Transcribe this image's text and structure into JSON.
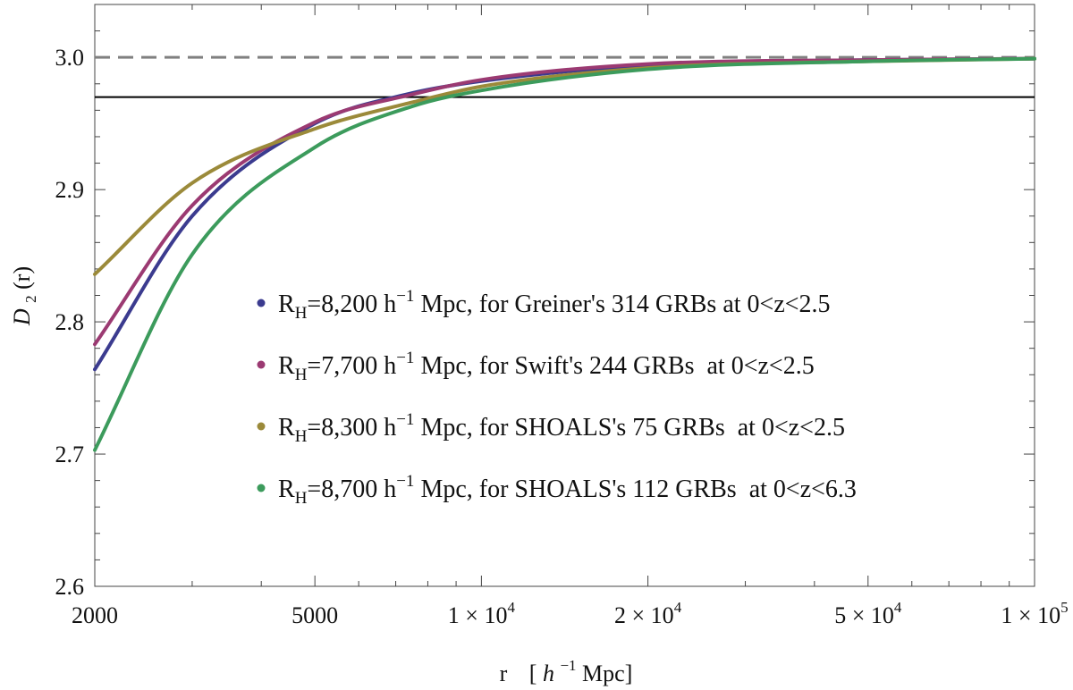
{
  "chart_data": {
    "type": "line",
    "x_scale": "log",
    "xlim": [
      2000,
      100000
    ],
    "ylim": [
      2.6,
      3.04
    ],
    "grid": false,
    "legend_position": "center-right",
    "xlabel": {
      "main": "r",
      "open": "[",
      "h": "h",
      "exp": "−1",
      "unit": " Mpc]"
    },
    "ylabel": {
      "d": "D",
      "sub": "2",
      "rest": "(r)"
    },
    "x_ticks": [
      {
        "value": 2000,
        "label": "2000"
      },
      {
        "value": 5000,
        "label": "5000"
      },
      {
        "value": 10000,
        "label": "1 × 10",
        "exp": "4"
      },
      {
        "value": 20000,
        "label": "2 × 10",
        "exp": "4"
      },
      {
        "value": 50000,
        "label": "5 × 10",
        "exp": "4"
      },
      {
        "value": 100000,
        "label": "1 × 10",
        "exp": "5"
      }
    ],
    "y_ticks": [
      {
        "value": 2.6,
        "label": "2.6"
      },
      {
        "value": 2.7,
        "label": "2.7"
      },
      {
        "value": 2.8,
        "label": "2.8"
      },
      {
        "value": 2.9,
        "label": "2.9"
      },
      {
        "value": 3.0,
        "label": "3.0"
      }
    ],
    "reference_lines": [
      {
        "y": 3.0,
        "style": "dashed",
        "color": "#808080"
      },
      {
        "y": 2.97,
        "style": "solid",
        "color": "#000000"
      }
    ],
    "series": [
      {
        "name": "R_H=8,200 h^-1 Mpc, for Greiner's 314 GRBs at 0<z<2.5",
        "legend": {
          "r": "R",
          "sub": "H",
          "value": "=8,200 h",
          "exp": "−1",
          "rest": " Mpc, for Greiner's 314 GRBs at 0<z<2.5"
        },
        "color": "#3b3b8f",
        "R_H": 8200,
        "x": [
          2000,
          3000,
          5000,
          7500,
          10000,
          20000,
          50000,
          100000
        ],
        "y": [
          2.764,
          2.88,
          2.95,
          2.973,
          2.982,
          2.994,
          2.998,
          2.999
        ]
      },
      {
        "name": "R_H=7,700 h^-1 Mpc, for Swift's 244 GRBs  at 0<z<2.5",
        "legend": {
          "r": "R",
          "sub": "H",
          "value": "=7,700 h",
          "exp": "−1",
          "rest": " Mpc, for Swift's 244 GRBs  at 0<z<2.5"
        },
        "color": "#9b3a72",
        "R_H": 7700,
        "x": [
          2000,
          3000,
          5000,
          7500,
          10000,
          20000,
          50000,
          100000
        ],
        "y": [
          2.783,
          2.888,
          2.951,
          2.972,
          2.983,
          2.995,
          2.998,
          2.999
        ]
      },
      {
        "name": "R_H=8,300 h^-1 Mpc, for SHOALS's 75 GRBs  at 0<z<2.5",
        "legend": {
          "r": "R",
          "sub": "H",
          "value": "=8,300 h",
          "exp": "−1",
          "rest": " Mpc, for SHOALS's 75 GRBs  at 0<z<2.5"
        },
        "color": "#9b8a3a",
        "R_H": 8300,
        "x": [
          2000,
          3000,
          5000,
          7500,
          10000,
          20000,
          50000,
          100000
        ],
        "y": [
          2.836,
          2.905,
          2.946,
          2.966,
          2.978,
          2.992,
          2.997,
          2.999
        ]
      },
      {
        "name": "R_H=8,700 h^-1 Mpc, for SHOALS's 112 GRBs  at 0<z<6.3",
        "legend": {
          "r": "R",
          "sub": "H",
          "value": "=8,700 h",
          "exp": "−1",
          "rest": " Mpc, for SHOALS's 112 GRBs  at 0<z<6.3"
        },
        "color": "#3c9b5c",
        "R_H": 8700,
        "x": [
          2000,
          3000,
          5000,
          7500,
          10000,
          20000,
          50000,
          100000
        ],
        "y": [
          2.703,
          2.851,
          2.932,
          2.963,
          2.975,
          2.991,
          2.997,
          2.999
        ]
      }
    ]
  }
}
